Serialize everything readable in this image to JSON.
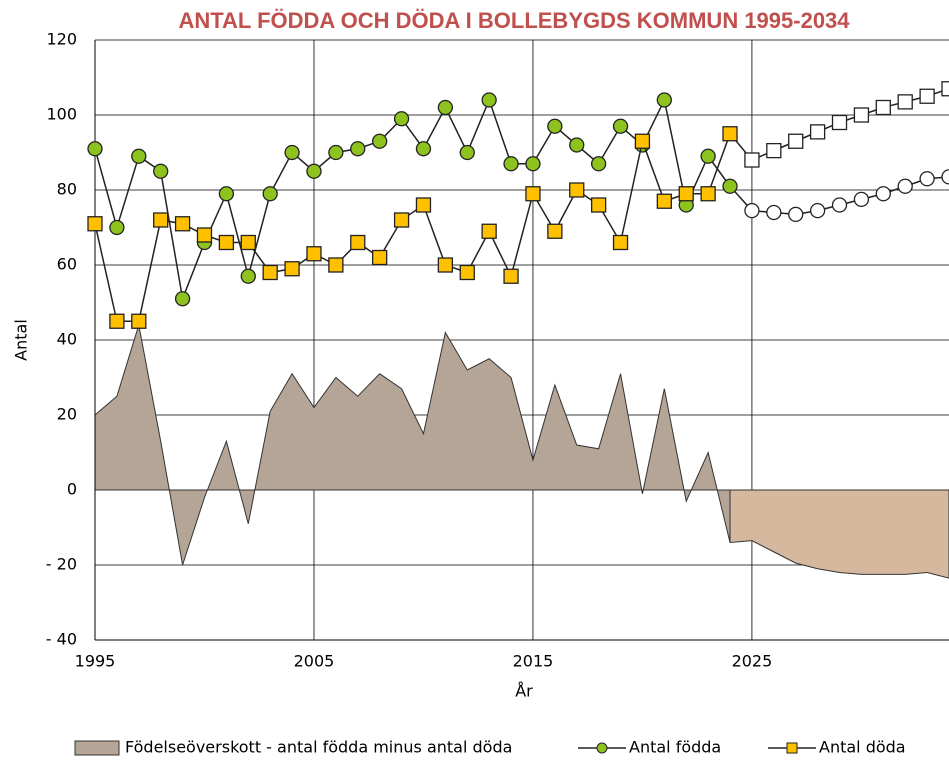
{
  "chart_data": {
    "type": "line",
    "title": "ANTAL FÖDDA OCH DÖDA I BOLLEBYGDS KOMMUN 1995-2034",
    "xlabel": "År",
    "ylabel": "Antal",
    "x": [
      1995,
      1996,
      1997,
      1998,
      1999,
      2000,
      2001,
      2002,
      2003,
      2004,
      2005,
      2006,
      2007,
      2008,
      2009,
      2010,
      2011,
      2012,
      2013,
      2014,
      2015,
      2016,
      2017,
      2018,
      2019,
      2020,
      2021,
      2022,
      2023,
      2024
    ],
    "forecast_x": [
      2025,
      2026,
      2027,
      2028,
      2029,
      2030,
      2031,
      2032,
      2033,
      2034
    ],
    "series": [
      {
        "name": "Födelseöverskott - antal födda minus antal döda",
        "type": "area",
        "color": "#b5a597",
        "forecast_color": "#d6b89f",
        "values": [
          20,
          25,
          44,
          13,
          -20,
          -2,
          13,
          -9,
          21,
          31,
          22,
          30,
          25,
          31,
          27,
          15,
          42,
          32,
          35,
          30,
          8,
          28,
          12,
          11,
          31,
          -1,
          27,
          -3,
          10,
          -14
        ],
        "forecast": [
          -13.5,
          -16.5,
          -19.5,
          -21,
          -22,
          -22.5,
          -22.5,
          -22.5,
          -22,
          -23.5
        ]
      },
      {
        "name": "Antal födda",
        "type": "line",
        "marker": "circle",
        "color": "#8dc21f",
        "forecast_color": "#ffffff",
        "values": [
          91,
          70,
          89,
          85,
          51,
          66,
          79,
          57,
          79,
          90,
          85,
          90,
          91,
          93,
          99,
          91,
          102,
          90,
          104,
          87,
          87,
          97,
          92,
          87,
          97,
          92,
          104,
          76,
          89,
          81
        ],
        "forecast": [
          74.5,
          74,
          73.5,
          74.5,
          76,
          77.5,
          79,
          81,
          83,
          83.5
        ]
      },
      {
        "name": "Antal döda",
        "type": "line",
        "marker": "square",
        "color": "#ffc000",
        "forecast_color": "#ffffff",
        "values": [
          71,
          45,
          45,
          72,
          71,
          68,
          66,
          66,
          58,
          59,
          63,
          60,
          66,
          62,
          72,
          76,
          60,
          58,
          69,
          57,
          79,
          69,
          80,
          76,
          66,
          93,
          77,
          79,
          79,
          95
        ],
        "forecast": [
          88,
          90.5,
          93,
          95.5,
          98,
          100,
          102,
          103.5,
          105,
          107
        ]
      }
    ],
    "xlim": [
      1995,
      2034
    ],
    "xticks": [
      1995,
      2005,
      2015,
      2025
    ],
    "ylim": [
      -40,
      120
    ],
    "yticks": [
      {
        "value": -40,
        "label": "- 40"
      },
      {
        "value": -20,
        "label": "- 20"
      },
      0,
      20,
      40,
      60,
      80,
      100,
      120
    ],
    "grid": true
  }
}
